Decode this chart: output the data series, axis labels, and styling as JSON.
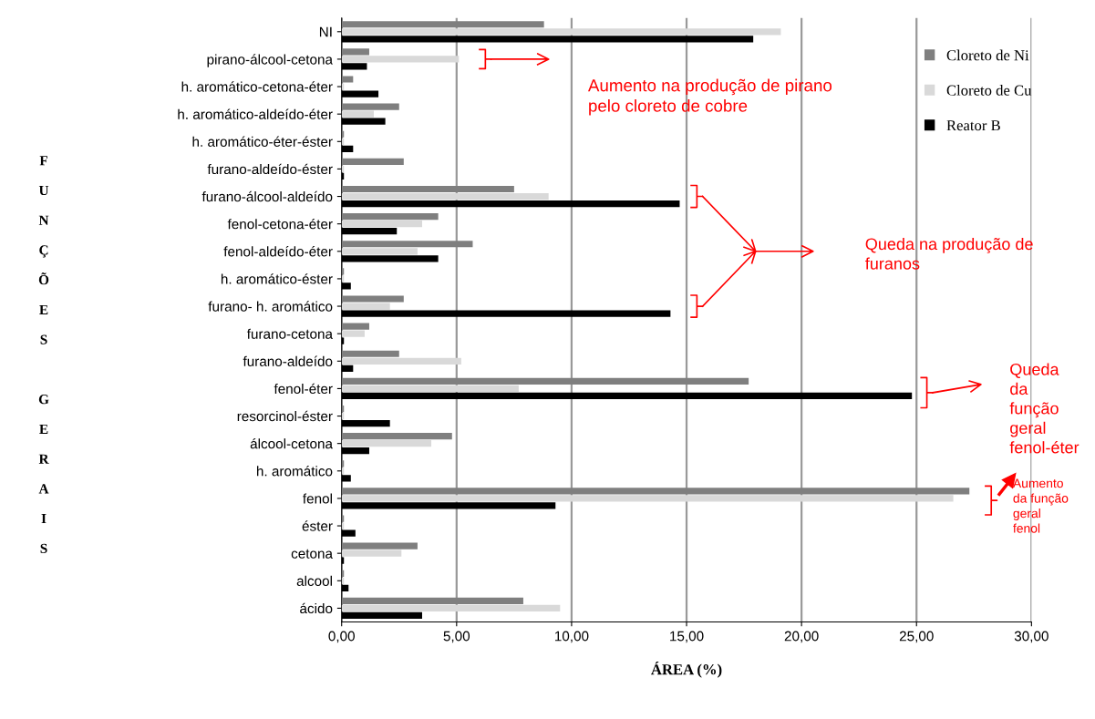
{
  "chart_data": {
    "type": "bar",
    "orientation": "horizontal",
    "xlabel": "ÁREA (%)",
    "ylabel": "FUNÇÕES GERAIS",
    "categories": [
      "NI",
      "pirano-álcool-cetona",
      "h. aromático-cetona-éter",
      "h. aromático-aldeído-éter",
      "h. aromático-éter-éster",
      "furano-aldeído-éster",
      "furano-álcool-aldeído",
      "fenol-cetona-éter",
      "fenol-aldeído-éter",
      "h. aromático-éster",
      "furano- h. aromático",
      "furano-cetona",
      "furano-aldeído",
      "fenol-éter",
      "resorcinol-éster",
      "álcool-cetona",
      "h. aromático",
      "fenol",
      "éster",
      "cetona",
      "alcool",
      "ácido"
    ],
    "series": [
      {
        "name": "Cloreto de Ni",
        "color": "#7f7f7f",
        "values": [
          8.8,
          1.2,
          0.5,
          2.5,
          0.1,
          2.7,
          7.5,
          4.2,
          5.7,
          0.1,
          2.7,
          1.2,
          2.5,
          17.7,
          0.1,
          4.8,
          0.1,
          27.3,
          0.1,
          3.3,
          0.1,
          7.9
        ]
      },
      {
        "name": "Cloreto de Cu",
        "color": "#d9d9d9",
        "values": [
          19.1,
          5.1,
          0.1,
          1.4,
          0.1,
          0.1,
          9.0,
          3.5,
          3.3,
          0.1,
          2.1,
          1.0,
          5.2,
          7.7,
          0.1,
          3.9,
          0.1,
          26.6,
          0.1,
          2.6,
          0.1,
          9.5
        ]
      },
      {
        "name": "Reator B",
        "color": "#000000",
        "values": [
          17.9,
          1.1,
          1.6,
          1.9,
          0.5,
          0.1,
          14.7,
          2.4,
          4.2,
          0.4,
          14.3,
          0.1,
          0.5,
          24.8,
          2.1,
          1.2,
          0.4,
          9.3,
          0.6,
          0.1,
          0.3,
          3.5
        ]
      }
    ],
    "xlim": [
      0,
      30
    ],
    "xticks": [
      {
        "value": 0,
        "label": "0,00"
      },
      {
        "value": 5,
        "label": "5,00"
      },
      {
        "value": 10,
        "label": "10,00"
      },
      {
        "value": 15,
        "label": "15,00"
      },
      {
        "value": 20,
        "label": "20,00"
      },
      {
        "value": 25,
        "label": "25,00"
      },
      {
        "value": 30,
        "label": "30,00"
      }
    ],
    "grid": "x",
    "legend": "top right",
    "annotations": [
      "Aumento na produção de pirano pelo cloreto de cobre",
      "Queda na produção de furanos",
      "Queda da função geral fenol-éter",
      "Aumento da função geral fenol"
    ]
  }
}
